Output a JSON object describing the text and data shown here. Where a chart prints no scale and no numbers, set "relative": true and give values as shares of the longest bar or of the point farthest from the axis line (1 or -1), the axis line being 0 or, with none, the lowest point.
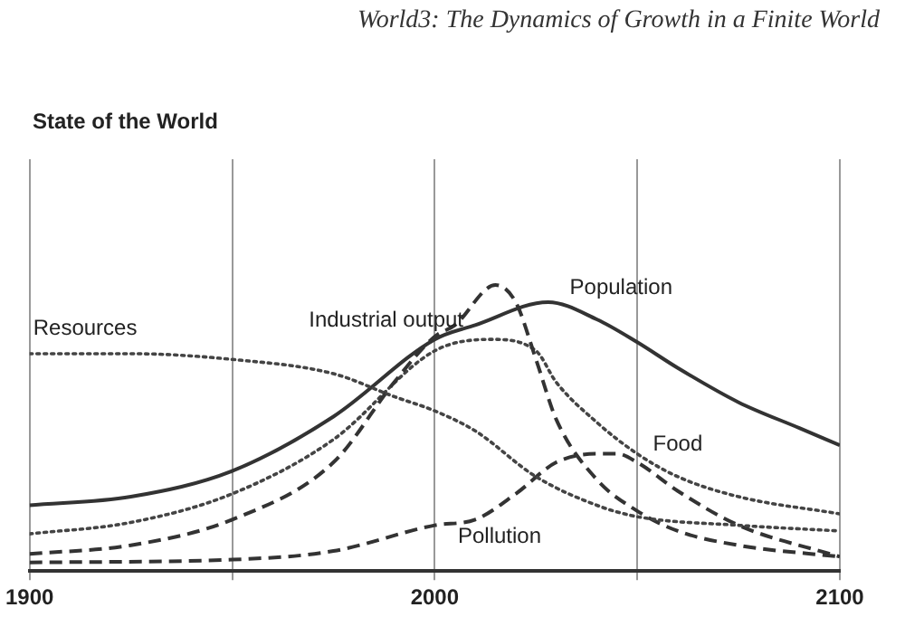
{
  "chart_data": {
    "type": "line",
    "title": "State of the World",
    "annotations": [
      "World3: The Dynamics of Growth in a Finite World"
    ],
    "relative": true,
    "grid": "x",
    "legend": false,
    "marker": "none",
    "xlim": [
      1900,
      2100
    ],
    "xticks": [
      1900,
      {
        "value": 1950,
        "label": null
      },
      2000,
      {
        "value": 2050,
        "label": null
      },
      2100
    ],
    "series": [
      {
        "name": "Resources",
        "color": "#444444",
        "line_style": "dotted",
        "x": [
          1900,
          1925,
          1950,
          1975,
          1990,
          2000,
          2010,
          2025,
          2040,
          2050,
          2075,
          2100
        ],
        "values": [
          0.76,
          0.76,
          0.74,
          0.69,
          0.61,
          0.56,
          0.49,
          0.33,
          0.23,
          0.19,
          0.16,
          0.14
        ]
      },
      {
        "name": "Industrial output",
        "color": "#333333",
        "line_style": "dashed",
        "x": [
          1900,
          1925,
          1950,
          1975,
          1990,
          2000,
          2005,
          2015,
          2020,
          2025,
          2030,
          2040,
          2050,
          2060,
          2075,
          2100
        ],
        "values": [
          0.06,
          0.09,
          0.18,
          0.38,
          0.66,
          0.82,
          0.86,
          1,
          0.94,
          0.74,
          0.53,
          0.32,
          0.21,
          0.14,
          0.09,
          0.05
        ]
      },
      {
        "name": "Population",
        "color": "#333333",
        "line_style": "solid",
        "x": [
          1900,
          1925,
          1950,
          1975,
          2000,
          2010,
          2028,
          2040,
          2050,
          2060,
          2075,
          2090,
          2100
        ],
        "values": [
          0.23,
          0.26,
          0.35,
          0.54,
          0.81,
          0.86,
          0.94,
          0.88,
          0.8,
          0.71,
          0.59,
          0.5,
          0.44
        ]
      },
      {
        "name": "Food",
        "color": "#444444",
        "line_style": "dotted",
        "x": [
          1900,
          1925,
          1950,
          1975,
          2000,
          2014,
          2025,
          2030,
          2040,
          2050,
          2060,
          2075,
          2100
        ],
        "values": [
          0.13,
          0.17,
          0.27,
          0.46,
          0.77,
          0.81,
          0.77,
          0.66,
          0.52,
          0.41,
          0.33,
          0.26,
          0.2
        ]
      },
      {
        "name": "Pollution",
        "color": "#333333",
        "line_style": "dashed",
        "x": [
          1900,
          1950,
          1975,
          2000,
          2010,
          2020,
          2030,
          2040,
          2045,
          2050,
          2060,
          2075,
          2100
        ],
        "values": [
          0.03,
          0.04,
          0.07,
          0.16,
          0.18,
          0.27,
          0.38,
          0.41,
          0.41,
          0.38,
          0.28,
          0.16,
          0.05
        ]
      }
    ]
  }
}
